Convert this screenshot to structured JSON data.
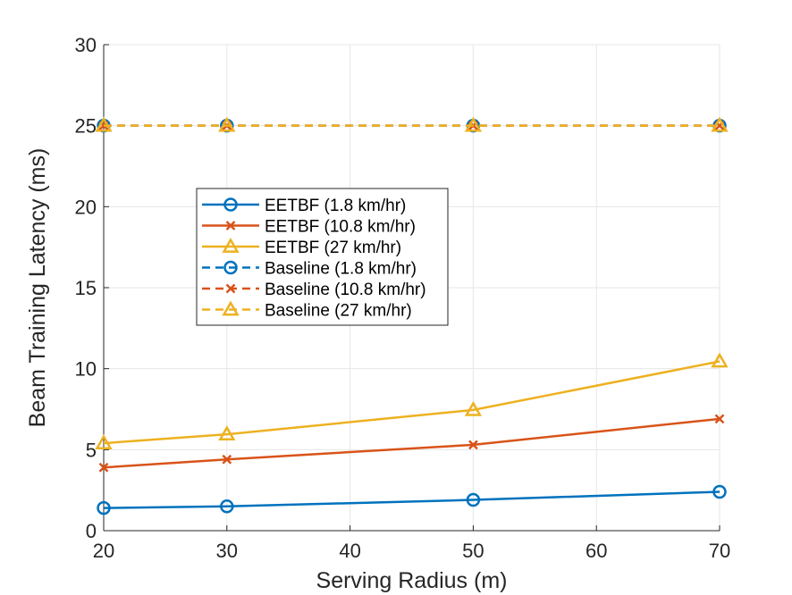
{
  "chart_data": {
    "type": "line",
    "title": "",
    "xlabel": "Serving Radius (m)",
    "ylabel": "Beam Training Latency (ms)",
    "xlim": [
      20,
      70
    ],
    "ylim": [
      0,
      30
    ],
    "xticks": [
      20,
      30,
      40,
      50,
      60,
      70
    ],
    "yticks": [
      0,
      5,
      10,
      15,
      20,
      25,
      30
    ],
    "grid": true,
    "legend_position": "center-left",
    "x": [
      20,
      30,
      50,
      70
    ],
    "series": [
      {
        "name": "EETBF (1.8 km/hr)",
        "values": [
          1.4,
          1.5,
          1.9,
          2.4
        ],
        "color": "#0072BD",
        "marker": "circle",
        "dash": "solid"
      },
      {
        "name": "EETBF (10.8 km/hr)",
        "values": [
          3.9,
          4.4,
          5.3,
          6.9
        ],
        "color": "#D95319",
        "marker": "x",
        "dash": "solid"
      },
      {
        "name": "EETBF (27 km/hr)",
        "values": [
          5.4,
          5.95,
          7.45,
          10.45
        ],
        "color": "#EDB120",
        "marker": "triangle",
        "dash": "solid"
      },
      {
        "name": "Baseline (1.8 km/hr)",
        "values": [
          25,
          25,
          25,
          25
        ],
        "color": "#0072BD",
        "marker": "circle",
        "dash": "dashed"
      },
      {
        "name": "Baseline (10.8 km/hr)",
        "values": [
          25,
          25,
          25,
          25
        ],
        "color": "#D95319",
        "marker": "x",
        "dash": "dashed"
      },
      {
        "name": "Baseline (27 km/hr)",
        "values": [
          25,
          25,
          25,
          25
        ],
        "color": "#EDB120",
        "marker": "triangle",
        "dash": "dashed"
      }
    ]
  }
}
